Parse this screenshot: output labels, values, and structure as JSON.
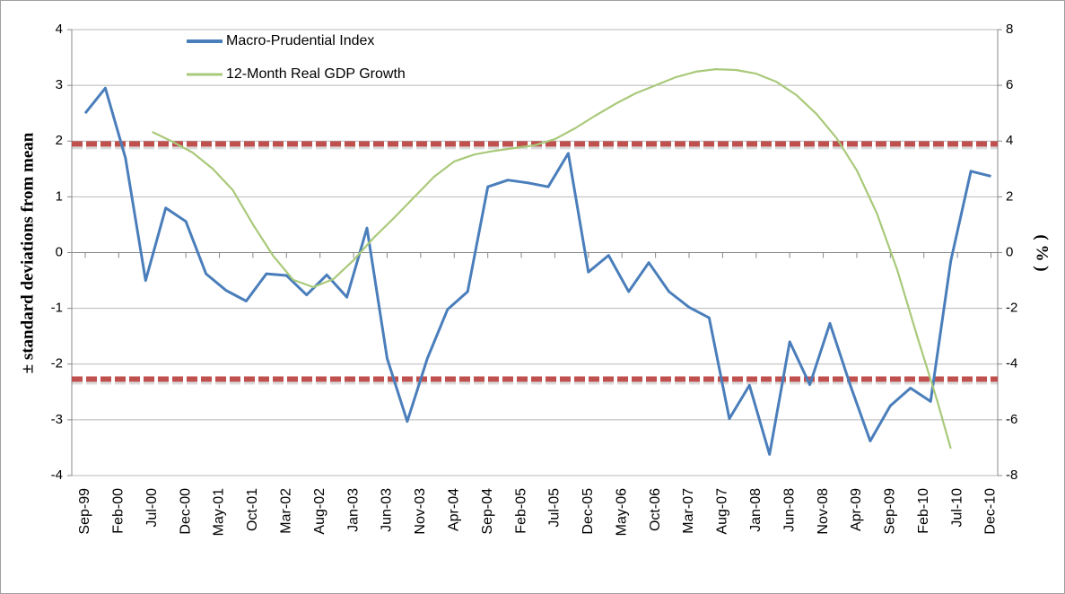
{
  "chart_data": {
    "type": "line",
    "ylabel": "± standard deviations from mean",
    "y2label": "( % )",
    "xlim": [
      "1999-07",
      "2011-01"
    ],
    "xticks": [
      {
        "value": "1999-09",
        "label": "Sep-99"
      },
      {
        "value": "2000-02",
        "label": "Feb-00"
      },
      {
        "value": "2000-07",
        "label": "Jul-00"
      },
      {
        "value": "2000-12",
        "label": "Dec-00"
      },
      {
        "value": "2001-05",
        "label": "May-01"
      },
      {
        "value": "2001-10",
        "label": "Oct-01"
      },
      {
        "value": "2002-03",
        "label": "Mar-02"
      },
      {
        "value": "2002-08",
        "label": "Aug-02"
      },
      {
        "value": "2003-01",
        "label": "Jan-03"
      },
      {
        "value": "2003-06",
        "label": "Jun-03"
      },
      {
        "value": "2003-11",
        "label": "Nov-03"
      },
      {
        "value": "2004-04",
        "label": "Apr-04"
      },
      {
        "value": "2004-09",
        "label": "Sep-04"
      },
      {
        "value": "2005-02",
        "label": "Feb-05"
      },
      {
        "value": "2005-07",
        "label": "Jul-05"
      },
      {
        "value": "2005-12",
        "label": "Dec-05"
      },
      {
        "value": "2006-05",
        "label": "May-06"
      },
      {
        "value": "2006-10",
        "label": "Oct-06"
      },
      {
        "value": "2007-03",
        "label": "Mar-07"
      },
      {
        "value": "2007-08",
        "label": "Aug-07"
      },
      {
        "value": "2008-01",
        "label": "Jan-08"
      },
      {
        "value": "2008-06",
        "label": "Jun-08"
      },
      {
        "value": "2008-11",
        "label": "Nov-08"
      },
      {
        "value": "2009-04",
        "label": "Apr-09"
      },
      {
        "value": "2009-09",
        "label": "Sep-09"
      },
      {
        "value": "2010-02",
        "label": "Feb-10"
      },
      {
        "value": "2010-07",
        "label": "Jul-10"
      },
      {
        "value": "2010-12",
        "label": "Dec-10"
      }
    ],
    "ylim": [
      -4,
      4
    ],
    "yticks": [
      -4,
      -3,
      -2,
      -1,
      0,
      1,
      2,
      3,
      4
    ],
    "y2lim": [
      -8,
      8
    ],
    "y2ticks": [
      -8,
      -6,
      -4,
      -2,
      0,
      2,
      4,
      6,
      8
    ],
    "grid": true,
    "reference_lines": {
      "values": [
        1.95,
        -2.27
      ],
      "color": "#c0504d"
    },
    "series": [
      {
        "name": "Macro-Prudential Index",
        "color": "#4a7ebb",
        "x": [
          "1999-09",
          "1999-12",
          "2000-03",
          "2000-06",
          "2000-09",
          "2000-12",
          "2001-03",
          "2001-06",
          "2001-09",
          "2001-12",
          "2002-03",
          "2002-06",
          "2002-09",
          "2002-12",
          "2003-03",
          "2003-06",
          "2003-09",
          "2003-12",
          "2004-03",
          "2004-06",
          "2004-09",
          "2004-12",
          "2005-03",
          "2005-06",
          "2005-09",
          "2005-12",
          "2006-03",
          "2006-06",
          "2006-09",
          "2006-12",
          "2007-03",
          "2007-06",
          "2007-09",
          "2007-12",
          "2008-03",
          "2008-06",
          "2008-09",
          "2008-12",
          "2009-03",
          "2009-06",
          "2009-09",
          "2009-12",
          "2010-03",
          "2010-06",
          "2010-09",
          "2010-12"
        ],
        "values": [
          2.5,
          2.95,
          1.7,
          -0.5,
          0.8,
          0.56,
          -0.38,
          -0.68,
          -0.87,
          -0.38,
          -0.41,
          -0.76,
          -0.4,
          -0.8,
          0.44,
          -1.9,
          -3.03,
          -1.9,
          -1.02,
          -0.7,
          1.18,
          1.3,
          1.25,
          1.18,
          1.78,
          -0.35,
          -0.05,
          -0.7,
          -0.18,
          -0.7,
          -0.98,
          -1.17,
          -2.98,
          -2.38,
          -3.62,
          -1.6,
          -2.37,
          -1.27,
          -2.37,
          -3.38,
          -2.75,
          -2.43,
          -2.67,
          -0.15,
          1.46,
          1.37
        ]
      },
      {
        "name": "12-Month Real GDP Growth",
        "color": "#a9c97a",
        "axis": "y2",
        "x": [
          "2000-07",
          "2000-10",
          "2001-01",
          "2001-04",
          "2001-07",
          "2001-10",
          "2002-01",
          "2002-04",
          "2002-07",
          "2002-10",
          "2003-01",
          "2003-04",
          "2003-07",
          "2003-10",
          "2004-01",
          "2004-04",
          "2004-07",
          "2004-10",
          "2005-01",
          "2005-04",
          "2005-07",
          "2005-10",
          "2006-01",
          "2006-04",
          "2006-07",
          "2006-10",
          "2007-01",
          "2007-04",
          "2007-07",
          "2007-10",
          "2008-01",
          "2008-04",
          "2008-07",
          "2008-10",
          "2009-01",
          "2009-04",
          "2009-07",
          "2009-10",
          "2010-01",
          "2010-04",
          "2010-06"
        ],
        "values": [
          4.33,
          3.98,
          3.59,
          3.01,
          2.24,
          1.01,
          -0.11,
          -0.98,
          -1.24,
          -0.95,
          -0.27,
          0.53,
          1.24,
          1.98,
          2.72,
          3.27,
          3.52,
          3.65,
          3.75,
          3.85,
          4.07,
          4.46,
          4.91,
          5.33,
          5.71,
          6.0,
          6.29,
          6.49,
          6.58,
          6.55,
          6.42,
          6.13,
          5.65,
          4.97,
          4.1,
          2.95,
          1.4,
          -0.6,
          -3.01,
          -5.33,
          -7.03
        ]
      }
    ]
  }
}
